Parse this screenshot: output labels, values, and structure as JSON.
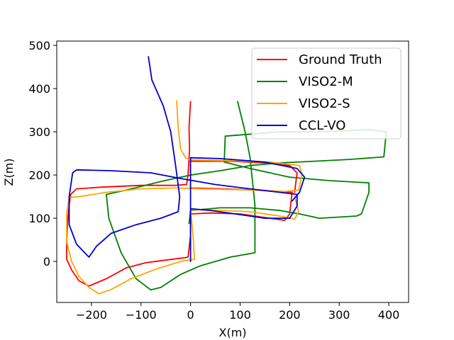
{
  "chart_data": {
    "type": "line",
    "title": "",
    "xlabel": "X(m)",
    "ylabel": "Z(m)",
    "xlim": [
      -270,
      440
    ],
    "ylim": [
      -95,
      510
    ],
    "xticks": [
      -200,
      -100,
      0,
      100,
      200,
      300,
      400
    ],
    "xtick_labels": [
      "−200",
      "−100",
      "0",
      "100",
      "200",
      "300",
      "400"
    ],
    "yticks": [
      0,
      100,
      200,
      300,
      400,
      500
    ],
    "ytick_labels": [
      "0",
      "100",
      "200",
      "300",
      "400",
      "500"
    ],
    "grid": false,
    "legend_position": "top-right",
    "series": [
      {
        "name": "Ground Truth",
        "color": "#ff0000",
        "points": [
          [
            0,
            370
          ],
          [
            -3,
            310
          ],
          [
            -2,
            260
          ],
          [
            -5,
            200
          ],
          [
            -8,
            178
          ],
          [
            -30,
            176
          ],
          [
            -100,
            176
          ],
          [
            -180,
            172
          ],
          [
            -230,
            168
          ],
          [
            -242,
            155
          ],
          [
            -245,
            130
          ],
          [
            -248,
            95
          ],
          [
            -250,
            45
          ],
          [
            -250,
            5
          ],
          [
            -240,
            -20
          ],
          [
            -225,
            -45
          ],
          [
            -205,
            -57
          ],
          [
            -170,
            -40
          ],
          [
            -130,
            -15
          ],
          [
            -90,
            -3
          ],
          [
            -50,
            3
          ],
          [
            -15,
            8
          ],
          [
            -5,
            10
          ],
          [
            0,
            60
          ],
          [
            0,
            110
          ],
          [
            40,
            112
          ],
          [
            100,
            110
          ],
          [
            160,
            100
          ],
          [
            190,
            95
          ],
          [
            200,
            110
          ],
          [
            205,
            160
          ],
          [
            150,
            164
          ],
          [
            70,
            168
          ],
          [
            0,
            170
          ],
          [
            0,
            200
          ],
          [
            0,
            232
          ],
          [
            80,
            232
          ],
          [
            150,
            228
          ],
          [
            200,
            222
          ],
          [
            215,
            205
          ],
          [
            210,
            160
          ]
        ]
      },
      {
        "name": "VISO2-M",
        "color": "#008000",
        "points": [
          [
            95,
            370
          ],
          [
            110,
            300
          ],
          [
            120,
            240
          ],
          [
            130,
            130
          ],
          [
            130,
            20
          ],
          [
            80,
            10
          ],
          [
            20,
            -10
          ],
          [
            -20,
            -30
          ],
          [
            -60,
            -60
          ],
          [
            -80,
            -66
          ],
          [
            -110,
            -40
          ],
          [
            -140,
            20
          ],
          [
            -165,
            100
          ],
          [
            -170,
            155
          ],
          [
            -130,
            165
          ],
          [
            -60,
            185
          ],
          [
            0,
            200
          ],
          [
            60,
            210
          ],
          [
            120,
            222
          ],
          [
            180,
            228
          ],
          [
            250,
            232
          ],
          [
            320,
            236
          ],
          [
            390,
            242
          ],
          [
            395,
            300
          ],
          [
            360,
            305
          ],
          [
            260,
            300
          ],
          [
            180,
            300
          ],
          [
            70,
            290
          ],
          [
            68,
            230
          ],
          [
            120,
            215
          ],
          [
            200,
            195
          ],
          [
            280,
            187
          ],
          [
            360,
            182
          ],
          [
            360,
            160
          ],
          [
            345,
            110
          ],
          [
            335,
            105
          ],
          [
            260,
            100
          ],
          [
            220,
            110
          ],
          [
            180,
            118
          ],
          [
            120,
            124
          ],
          [
            60,
            124
          ],
          [
            0,
            118
          ],
          [
            -3,
            88
          ]
        ]
      },
      {
        "name": "VISO2-S",
        "color": "#ffa500",
        "points": [
          [
            -28,
            372
          ],
          [
            -25,
            310
          ],
          [
            -20,
            260
          ],
          [
            -10,
            240
          ],
          [
            0,
            235
          ],
          [
            80,
            233
          ],
          [
            160,
            230
          ],
          [
            220,
            222
          ],
          [
            225,
            200
          ],
          [
            218,
            165
          ],
          [
            190,
            162
          ],
          [
            100,
            166
          ],
          [
            20,
            168
          ],
          [
            -30,
            170
          ],
          [
            -100,
            168
          ],
          [
            -170,
            160
          ],
          [
            -225,
            150
          ],
          [
            -245,
            148
          ],
          [
            -250,
            110
          ],
          [
            -250,
            45
          ],
          [
            -240,
            0
          ],
          [
            -225,
            -35
          ],
          [
            -205,
            -60
          ],
          [
            -185,
            -75
          ],
          [
            -160,
            -65
          ],
          [
            -120,
            -40
          ],
          [
            -70,
            -18
          ],
          [
            -20,
            0
          ],
          [
            8,
            5
          ],
          [
            5,
            60
          ],
          [
            0,
            120
          ],
          [
            60,
            118
          ],
          [
            120,
            115
          ],
          [
            180,
            105
          ],
          [
            210,
            98
          ],
          [
            218,
            115
          ],
          [
            210,
            150
          ]
        ]
      },
      {
        "name": "CCL-VO",
        "color": "#0000cc",
        "points": [
          [
            -85,
            474
          ],
          [
            -78,
            420
          ],
          [
            -55,
            360
          ],
          [
            -40,
            300
          ],
          [
            -30,
            220
          ],
          [
            -22,
            150
          ],
          [
            -25,
            115
          ],
          [
            -60,
            100
          ],
          [
            -110,
            85
          ],
          [
            -160,
            65
          ],
          [
            -190,
            35
          ],
          [
            -205,
            10
          ],
          [
            -230,
            40
          ],
          [
            -245,
            85
          ],
          [
            -245,
            150
          ],
          [
            -238,
            205
          ],
          [
            -230,
            212
          ],
          [
            -160,
            210
          ],
          [
            -80,
            205
          ],
          [
            -20,
            192
          ],
          [
            50,
            178
          ],
          [
            120,
            168
          ],
          [
            180,
            160
          ],
          [
            215,
            155
          ],
          [
            215,
            128
          ],
          [
            200,
            100
          ],
          [
            150,
            100
          ],
          [
            90,
            110
          ],
          [
            40,
            118
          ],
          [
            0,
            122
          ],
          [
            0,
            0
          ],
          [
            0,
            240
          ],
          [
            60,
            238
          ],
          [
            150,
            230
          ],
          [
            215,
            215
          ],
          [
            230,
            195
          ],
          [
            220,
            160
          ],
          [
            205,
            140
          ]
        ]
      }
    ]
  }
}
